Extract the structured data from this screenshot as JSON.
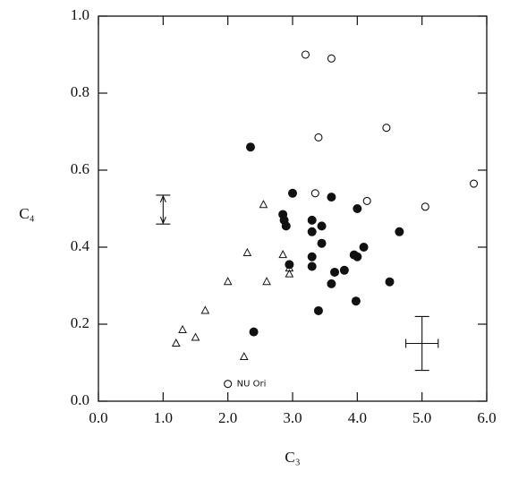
{
  "chart_data": {
    "type": "scatter",
    "x_label": "C₃",
    "y_label": "C₄",
    "xlim": [
      0,
      6
    ],
    "ylim": [
      0,
      1
    ],
    "xticks": [
      {
        "value": 0,
        "label": "0.0"
      },
      {
        "value": 1,
        "label": "1.0"
      },
      {
        "value": 2,
        "label": "2.0"
      },
      {
        "value": 3,
        "label": "3.0"
      },
      {
        "value": 4,
        "label": "4.0"
      },
      {
        "value": 5,
        "label": "5.0"
      },
      {
        "value": 6,
        "label": "6.0"
      }
    ],
    "yticks": [
      {
        "value": 0,
        "label": "0.0"
      },
      {
        "value": 0.2,
        "label": "0.2"
      },
      {
        "value": 0.4,
        "label": "0.4"
      },
      {
        "value": 0.6,
        "label": "0.6"
      },
      {
        "value": 0.8,
        "label": "0.8"
      },
      {
        "value": 1,
        "label": "1.0"
      }
    ],
    "series": [
      {
        "marker": "filled-circle",
        "color": "#111111",
        "x": [
          2.35,
          2.4,
          3.0,
          2.85,
          2.87,
          2.9,
          2.95,
          3.3,
          3.3,
          3.45,
          3.3,
          3.3,
          3.45,
          3.4,
          3.6,
          3.6,
          3.65,
          3.8,
          3.95,
          4.0,
          4.0,
          3.98,
          4.1,
          4.5,
          4.65
        ],
        "values": [
          0.66,
          0.18,
          0.54,
          0.485,
          0.47,
          0.455,
          0.355,
          0.47,
          0.44,
          0.455,
          0.375,
          0.35,
          0.41,
          0.235,
          0.53,
          0.305,
          0.335,
          0.34,
          0.38,
          0.375,
          0.5,
          0.26,
          0.4,
          0.31,
          0.44
        ]
      },
      {
        "marker": "open-circle",
        "color": "#111111",
        "x": [
          3.2,
          3.6,
          3.4,
          4.45,
          5.8,
          5.05,
          4.15,
          3.35
        ],
        "values": [
          0.9,
          0.89,
          0.685,
          0.71,
          0.565,
          0.505,
          0.52,
          0.54
        ]
      },
      {
        "marker": "open-triangle",
        "color": "#111111",
        "x": [
          1.2,
          1.3,
          1.5,
          1.65,
          2.0,
          2.25,
          2.3,
          2.55,
          2.6,
          2.85,
          2.95,
          2.95
        ],
        "values": [
          0.15,
          0.185,
          0.165,
          0.235,
          0.31,
          0.115,
          0.385,
          0.51,
          0.31,
          0.38,
          0.345,
          0.33
        ]
      }
    ],
    "annotations": [
      {
        "text": "NU Ori",
        "x": 2.0,
        "y": 0.045
      }
    ],
    "errorbars": [
      {
        "style": "arrow",
        "x": 1.0,
        "y": 0.4975,
        "yerr": 0.0375
      },
      {
        "style": "cross",
        "x": 5.0,
        "y": 0.15,
        "xerr": 0.25,
        "yerr": 0.07
      }
    ]
  }
}
